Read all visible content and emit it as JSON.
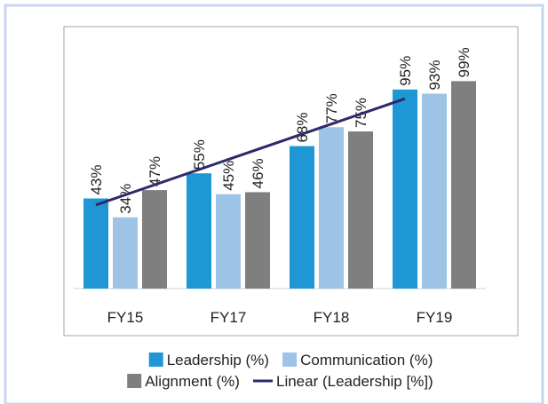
{
  "chart_data": {
    "type": "bar",
    "categories": [
      "FY15",
      "FY17",
      "FY18",
      "FY19"
    ],
    "series": [
      {
        "name": "Leadership (%)",
        "color": "#1f97d4",
        "values": [
          43,
          55,
          68,
          95
        ],
        "value_labels": [
          "43%",
          "55%",
          "68%",
          "95%"
        ]
      },
      {
        "name": "Communication (%)",
        "color": "#9dc3e6",
        "values": [
          34,
          45,
          77,
          93
        ],
        "value_labels": [
          "34%",
          "45%",
          "77%",
          "93%"
        ]
      },
      {
        "name": "Alignment (%)",
        "color": "#7f7f7f",
        "values": [
          47,
          46,
          75,
          99
        ],
        "value_labels": [
          "47%",
          "46%",
          "75%",
          "99%"
        ]
      }
    ],
    "trendline": {
      "name": "Linear (Leadership [%])",
      "color": "#2b2a6b",
      "series": 0
    },
    "ylim": [
      0,
      100
    ]
  }
}
